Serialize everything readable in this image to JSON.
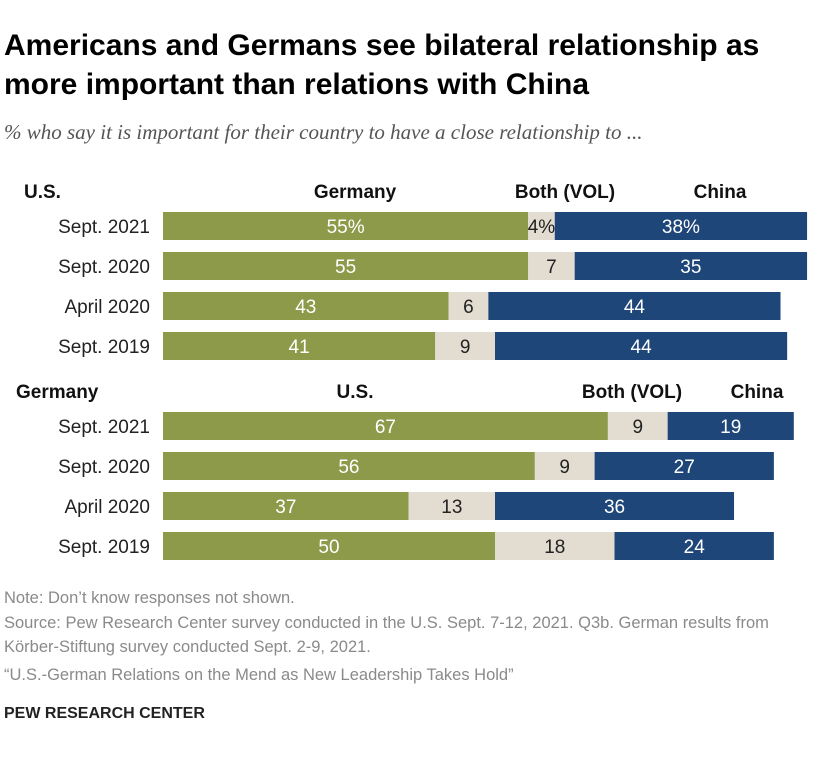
{
  "title": "Americans and Germans see bilateral relationship as more important than relations with China",
  "subtitle": "% who say it is important for their country to have a close relationship to ...",
  "colors": {
    "first": "#8d9a4a",
    "both": "#e2ddd0",
    "china": "#1f4679",
    "dark_text": "#222222",
    "light_text": "#ffffff"
  },
  "chart_data": [
    {
      "type": "bar",
      "stacked": true,
      "orientation": "horizontal",
      "group_label": "U.S.",
      "series_headers": [
        "Germany",
        "Both (VOL)",
        "China"
      ],
      "categories": [
        "Sept. 2021",
        "Sept. 2020",
        "April 2020",
        "Sept. 2019"
      ],
      "series": [
        {
          "name": "Germany",
          "values": [
            55,
            55,
            43,
            41
          ]
        },
        {
          "name": "Both (VOL)",
          "values": [
            4,
            7,
            6,
            9
          ]
        },
        {
          "name": "China",
          "values": [
            38,
            35,
            44,
            44
          ]
        }
      ],
      "labels": [
        [
          "55%",
          "4%",
          "38%"
        ],
        [
          "55",
          "7",
          "35"
        ],
        [
          "43",
          "6",
          "44"
        ],
        [
          "41",
          "9",
          "44"
        ]
      ]
    },
    {
      "type": "bar",
      "stacked": true,
      "orientation": "horizontal",
      "group_label": "Germany",
      "series_headers": [
        "U.S.",
        "Both (VOL)",
        "China"
      ],
      "categories": [
        "Sept. 2021",
        "Sept. 2020",
        "April 2020",
        "Sept. 2019"
      ],
      "series": [
        {
          "name": "U.S.",
          "values": [
            67,
            56,
            37,
            50
          ]
        },
        {
          "name": "Both (VOL)",
          "values": [
            9,
            9,
            13,
            18
          ]
        },
        {
          "name": "China",
          "values": [
            19,
            27,
            36,
            24
          ]
        }
      ],
      "labels": [
        [
          "67",
          "9",
          "19"
        ],
        [
          "56",
          "9",
          "27"
        ],
        [
          "37",
          "13",
          "36"
        ],
        [
          "50",
          "18",
          "24"
        ]
      ]
    }
  ],
  "notes": [
    "Note: Don’t know responses not shown.",
    "Source: Pew Research Center survey conducted in the U.S. Sept. 7-12, 2021. Q3b. German results from Körber-Stiftung survey conducted Sept. 2-9, 2021.",
    "“U.S.-German Relations on the Mend as New Leadership Takes Hold”"
  ],
  "footer": "PEW RESEARCH CENTER"
}
